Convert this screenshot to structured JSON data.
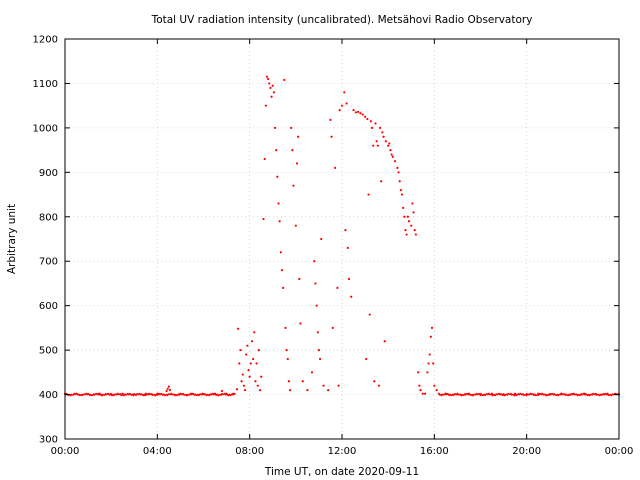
{
  "chart_data": {
    "type": "scatter",
    "title": "Total UV radiation intensity (uncalibrated). Metsähovi Radio Observatory",
    "xlabel": "Time UT, on date 2020-09-11",
    "ylabel": "Arbitrary unit",
    "xlim": [
      0,
      24
    ],
    "ylim": [
      300,
      1200
    ],
    "x_unit": "hours UT",
    "x_ticks": [
      0,
      4,
      8,
      12,
      16,
      20,
      24
    ],
    "x_tick_labels": [
      "00:00",
      "04:00",
      "08:00",
      "12:00",
      "16:00",
      "20:00",
      "00:00"
    ],
    "y_ticks": [
      300,
      400,
      500,
      600,
      700,
      800,
      900,
      1000,
      1100,
      1200
    ],
    "y_tick_labels": [
      "300",
      "400",
      "500",
      "600",
      "700",
      "800",
      "900",
      "1000",
      "1100",
      "1200"
    ],
    "grid": true,
    "legend": "none",
    "series_color": "#ff0000",
    "baseline_level": 400,
    "series": [
      {
        "points": [
          [
            0.0,
            402
          ],
          [
            0.5,
            402
          ],
          [
            1.0,
            401
          ],
          [
            1.5,
            402
          ],
          [
            2.0,
            401
          ],
          [
            2.5,
            402
          ],
          [
            3.0,
            401
          ],
          [
            3.5,
            402
          ],
          [
            4.0,
            402
          ],
          [
            4.4,
            408
          ],
          [
            4.45,
            413
          ],
          [
            4.5,
            418
          ],
          [
            4.55,
            410
          ],
          [
            5.0,
            402
          ],
          [
            5.5,
            402
          ],
          [
            6.0,
            401
          ],
          [
            6.5,
            402
          ],
          [
            6.8,
            408
          ],
          [
            7.0,
            402
          ],
          [
            7.3,
            402
          ],
          [
            7.45,
            412
          ],
          [
            7.5,
            548
          ],
          [
            7.55,
            470
          ],
          [
            7.6,
            500
          ],
          [
            7.65,
            430
          ],
          [
            7.7,
            445
          ],
          [
            7.75,
            420
          ],
          [
            7.8,
            410
          ],
          [
            7.85,
            490
          ],
          [
            7.9,
            510
          ],
          [
            7.95,
            455
          ],
          [
            8.0,
            440
          ],
          [
            8.05,
            470
          ],
          [
            8.1,
            520
          ],
          [
            8.15,
            480
          ],
          [
            8.2,
            540
          ],
          [
            8.25,
            430
          ],
          [
            8.3,
            470
          ],
          [
            8.35,
            420
          ],
          [
            8.4,
            500
          ],
          [
            8.45,
            410
          ],
          [
            8.5,
            440
          ],
          [
            8.6,
            795
          ],
          [
            8.65,
            930
          ],
          [
            8.7,
            1050
          ],
          [
            8.75,
            1115
          ],
          [
            8.8,
            1110
          ],
          [
            8.85,
            1100
          ],
          [
            8.9,
            1090
          ],
          [
            8.95,
            1070
          ],
          [
            9.0,
            1095
          ],
          [
            9.05,
            1080
          ],
          [
            9.1,
            1000
          ],
          [
            9.15,
            950
          ],
          [
            9.2,
            890
          ],
          [
            9.25,
            830
          ],
          [
            9.3,
            790
          ],
          [
            9.35,
            720
          ],
          [
            9.4,
            680
          ],
          [
            9.45,
            640
          ],
          [
            9.5,
            1108
          ],
          [
            9.55,
            550
          ],
          [
            9.6,
            500
          ],
          [
            9.65,
            480
          ],
          [
            9.7,
            430
          ],
          [
            9.75,
            410
          ],
          [
            9.8,
            1000
          ],
          [
            9.85,
            950
          ],
          [
            9.9,
            870
          ],
          [
            10.0,
            780
          ],
          [
            10.05,
            920
          ],
          [
            10.1,
            980
          ],
          [
            10.15,
            660
          ],
          [
            10.2,
            560
          ],
          [
            10.3,
            430
          ],
          [
            10.5,
            410
          ],
          [
            10.7,
            450
          ],
          [
            10.8,
            700
          ],
          [
            10.85,
            650
          ],
          [
            10.9,
            600
          ],
          [
            10.95,
            540
          ],
          [
            11.0,
            500
          ],
          [
            11.05,
            480
          ],
          [
            11.1,
            750
          ],
          [
            11.2,
            420
          ],
          [
            11.4,
            410
          ],
          [
            11.5,
            1018
          ],
          [
            11.55,
            980
          ],
          [
            11.6,
            550
          ],
          [
            11.7,
            910
          ],
          [
            11.8,
            640
          ],
          [
            11.85,
            420
          ],
          [
            11.9,
            1040
          ],
          [
            12.0,
            1050
          ],
          [
            12.1,
            1080
          ],
          [
            12.15,
            770
          ],
          [
            12.2,
            1055
          ],
          [
            12.25,
            730
          ],
          [
            12.3,
            660
          ],
          [
            12.4,
            620
          ],
          [
            12.5,
            1040
          ],
          [
            12.6,
            1035
          ],
          [
            12.7,
            1036
          ],
          [
            12.8,
            1033
          ],
          [
            12.9,
            1030
          ],
          [
            13.0,
            1025
          ],
          [
            13.05,
            480
          ],
          [
            13.1,
            1020
          ],
          [
            13.15,
            850
          ],
          [
            13.2,
            580
          ],
          [
            13.25,
            1015
          ],
          [
            13.3,
            1000
          ],
          [
            13.35,
            960
          ],
          [
            13.4,
            430
          ],
          [
            13.45,
            1010
          ],
          [
            13.5,
            970
          ],
          [
            13.55,
            960
          ],
          [
            13.6,
            420
          ],
          [
            13.65,
            1000
          ],
          [
            13.7,
            880
          ],
          [
            13.75,
            990
          ],
          [
            13.8,
            980
          ],
          [
            13.85,
            520
          ],
          [
            13.9,
            970
          ],
          [
            14.0,
            960
          ],
          [
            14.05,
            965
          ],
          [
            14.1,
            950
          ],
          [
            14.15,
            940
          ],
          [
            14.2,
            935
          ],
          [
            14.3,
            925
          ],
          [
            14.4,
            910
          ],
          [
            14.45,
            900
          ],
          [
            14.5,
            880
          ],
          [
            14.55,
            860
          ],
          [
            14.6,
            850
          ],
          [
            14.65,
            820
          ],
          [
            14.7,
            800
          ],
          [
            14.75,
            770
          ],
          [
            14.8,
            760
          ],
          [
            14.85,
            800
          ],
          [
            14.9,
            790
          ],
          [
            15.0,
            780
          ],
          [
            15.05,
            830
          ],
          [
            15.1,
            810
          ],
          [
            15.15,
            770
          ],
          [
            15.2,
            760
          ],
          [
            15.3,
            450
          ],
          [
            15.35,
            420
          ],
          [
            15.4,
            410
          ],
          [
            15.5,
            402
          ],
          [
            15.6,
            402
          ],
          [
            15.7,
            450
          ],
          [
            15.75,
            470
          ],
          [
            15.8,
            490
          ],
          [
            15.85,
            530
          ],
          [
            15.9,
            550
          ],
          [
            15.95,
            470
          ],
          [
            16.0,
            420
          ],
          [
            16.1,
            410
          ],
          [
            16.2,
            402
          ],
          [
            16.5,
            402
          ],
          [
            17.0,
            401
          ],
          [
            17.5,
            402
          ],
          [
            18.0,
            401
          ],
          [
            18.5,
            402
          ],
          [
            19.0,
            401
          ],
          [
            19.5,
            402
          ],
          [
            20.0,
            401
          ],
          [
            20.5,
            402
          ],
          [
            21.0,
            401
          ],
          [
            21.5,
            402
          ],
          [
            22.0,
            401
          ],
          [
            22.5,
            402
          ],
          [
            23.0,
            401
          ],
          [
            23.5,
            402
          ],
          [
            24.0,
            401
          ]
        ]
      }
    ]
  }
}
